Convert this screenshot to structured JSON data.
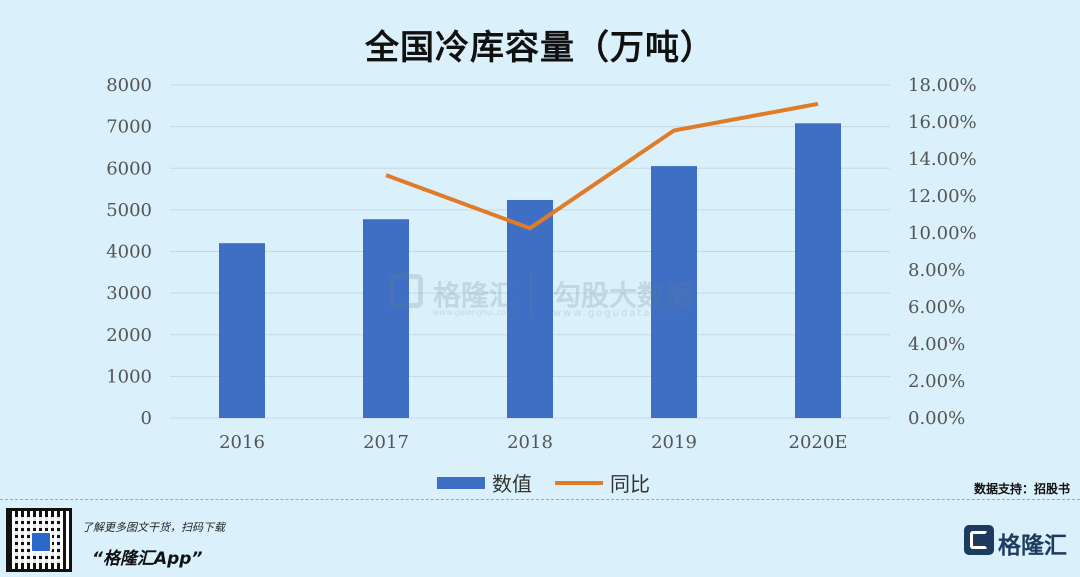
{
  "chart_data": {
    "type": "bar+line",
    "title": "全国冷库容量（万吨）",
    "categories": [
      "2016",
      "2017",
      "2018",
      "2019",
      "2020E"
    ],
    "series": [
      {
        "name": "数值",
        "type": "bar",
        "axis": "left",
        "color": "#3f6fc4",
        "values": [
          4200,
          4775,
          5238,
          6052,
          7080
        ]
      },
      {
        "name": "同比",
        "type": "line",
        "axis": "right",
        "color": "#e07b28",
        "values": [
          null,
          0.1313,
          0.1026,
          0.1554,
          0.1698
        ]
      }
    ],
    "left_axis": {
      "ylim": [
        0,
        8000
      ],
      "ticks": [
        "0",
        "1000",
        "2000",
        "3000",
        "4000",
        "5000",
        "6000",
        "7000",
        "8000"
      ]
    },
    "right_axis": {
      "ylim": [
        0,
        0.18
      ],
      "ticks": [
        "0.00%",
        "2.00%",
        "4.00%",
        "6.00%",
        "8.00%",
        "10.00%",
        "12.00%",
        "14.00%",
        "16.00%",
        "18.00%"
      ]
    },
    "grid": true,
    "legend_position": "bottom-center"
  },
  "watermark": {
    "name": "格隆汇",
    "url": "www.gelonghui.com",
    "name2": "勾股大数据",
    "url2": "www.gogudata.com"
  },
  "source": "数据支持：招股书",
  "footer": {
    "promo_text": "了解更多图文干货，扫码下载",
    "app_name": "“格隆汇App”",
    "brand": "格隆汇"
  },
  "colors": {
    "background": "#daf1fb",
    "bar": "#3f6fc4",
    "line": "#e07b28"
  }
}
